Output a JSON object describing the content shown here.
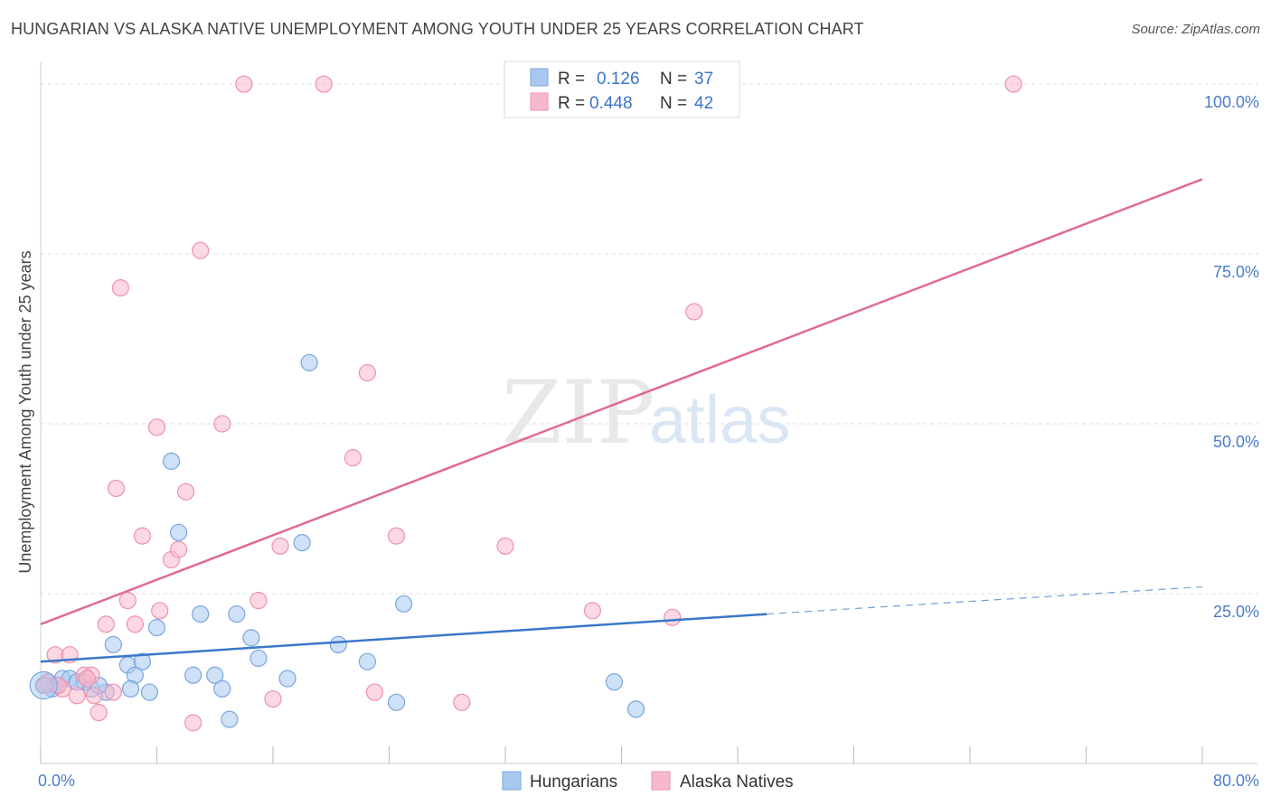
{
  "title": "HUNGARIAN VS ALASKA NATIVE UNEMPLOYMENT AMONG YOUTH UNDER 25 YEARS CORRELATION CHART",
  "source": "Source: ZipAtlas.com",
  "watermark": {
    "zip": "ZIP",
    "atlas": "atlas"
  },
  "colors": {
    "hungarian_fill": "#a8c8f0",
    "hungarian_stroke": "#7aa6dd",
    "hungarian_line": "#3a78c8",
    "alaska_fill": "#f7b8cb",
    "alaska_stroke": "#ec93ad",
    "alaska_line": "#e06a94",
    "grid": "#dcdcdc",
    "axis_label": "#4a7cc9"
  },
  "legend": {
    "rows": [
      {
        "r_label": "R =",
        "r_value": "0.126",
        "n_label": "N =",
        "n_value": "37"
      },
      {
        "r_label": "R =",
        "r_value": "0.448",
        "n_label": "N =",
        "n_value": "42"
      }
    ]
  },
  "chart_data": {
    "type": "scatter",
    "title": "HUNGARIAN VS ALASKA NATIVE UNEMPLOYMENT AMONG YOUTH UNDER 25 YEARS CORRELATION CHART",
    "xlabel": "",
    "ylabel": "Unemployment Among Youth under 25 years",
    "xlim": [
      0,
      80
    ],
    "ylim": [
      0,
      102
    ],
    "x_tick_labels": [
      "0.0%",
      "80.0%"
    ],
    "y_ticks": [
      25,
      50,
      75,
      100
    ],
    "y_tick_labels": [
      "25.0%",
      "50.0%",
      "75.0%",
      "100.0%"
    ],
    "series": [
      {
        "name": "Hungarians",
        "color": "#a8c8f0",
        "points": [
          [
            0.2,
            11.5
          ],
          [
            0.5,
            12
          ],
          [
            1,
            11.5
          ],
          [
            1.5,
            12.5
          ],
          [
            2,
            12.5
          ],
          [
            3,
            12
          ],
          [
            3.5,
            11
          ],
          [
            4.5,
            10.5
          ],
          [
            5,
            17.5
          ],
          [
            6,
            14.5
          ],
          [
            6.5,
            13
          ],
          [
            7,
            15
          ],
          [
            7.5,
            10.5
          ],
          [
            8,
            20
          ],
          [
            9,
            44.5
          ],
          [
            9.5,
            34
          ],
          [
            10.5,
            13
          ],
          [
            11,
            22
          ],
          [
            12,
            13
          ],
          [
            12.5,
            11
          ],
          [
            13,
            6.5
          ],
          [
            13.5,
            22
          ],
          [
            14.5,
            18.5
          ],
          [
            15,
            15.5
          ],
          [
            17,
            12.5
          ],
          [
            18,
            32.5
          ],
          [
            18.5,
            59
          ],
          [
            20.5,
            17.5
          ],
          [
            22.5,
            15
          ],
          [
            24.5,
            9
          ],
          [
            25,
            23.5
          ],
          [
            39.5,
            12
          ],
          [
            41,
            8
          ],
          [
            2.5,
            12
          ],
          [
            4,
            11.5
          ],
          [
            6.2,
            11
          ],
          [
            0.8,
            11
          ]
        ]
      },
      {
        "name": "Alaska Natives",
        "color": "#f7b8cb",
        "points": [
          [
            0.5,
            12
          ],
          [
            1,
            16
          ],
          [
            1.5,
            11
          ],
          [
            2,
            16
          ],
          [
            2.5,
            10
          ],
          [
            3,
            13
          ],
          [
            3.5,
            13
          ],
          [
            3.7,
            10
          ],
          [
            4,
            7.5
          ],
          [
            4.5,
            20.5
          ],
          [
            5,
            10.5
          ],
          [
            5.5,
            70
          ],
          [
            5.2,
            40.5
          ],
          [
            6,
            24
          ],
          [
            6.5,
            20.5
          ],
          [
            7,
            33.5
          ],
          [
            8,
            49.5
          ],
          [
            8.2,
            22.5
          ],
          [
            9,
            30
          ],
          [
            9.5,
            31.5
          ],
          [
            10,
            40
          ],
          [
            10.5,
            6
          ],
          [
            11,
            75.5
          ],
          [
            12.5,
            50
          ],
          [
            14,
            100
          ],
          [
            15,
            24
          ],
          [
            16,
            9.5
          ],
          [
            16.5,
            32
          ],
          [
            19.5,
            100
          ],
          [
            21.5,
            45
          ],
          [
            22.5,
            57.5
          ],
          [
            23,
            10.5
          ],
          [
            24.5,
            33.5
          ],
          [
            29,
            9
          ],
          [
            32,
            32
          ],
          [
            38,
            22.5
          ],
          [
            43.5,
            21.5
          ],
          [
            45,
            66.5
          ],
          [
            67,
            100
          ],
          [
            1.2,
            11.5
          ],
          [
            3.2,
            12.5
          ],
          [
            0.3,
            11.5
          ]
        ]
      }
    ],
    "trendlines": [
      {
        "series": "Hungarians",
        "x": [
          0,
          50
        ],
        "y": [
          15,
          22
        ],
        "dashed_extension_x": [
          50,
          80
        ],
        "dashed_extension_y": [
          22,
          26
        ]
      },
      {
        "series": "Alaska Natives",
        "x": [
          0,
          80
        ],
        "y": [
          20.5,
          86
        ]
      }
    ],
    "legend_position": "top-center",
    "bottom_legend": [
      "Hungarians",
      "Alaska Natives"
    ],
    "grid": true
  }
}
